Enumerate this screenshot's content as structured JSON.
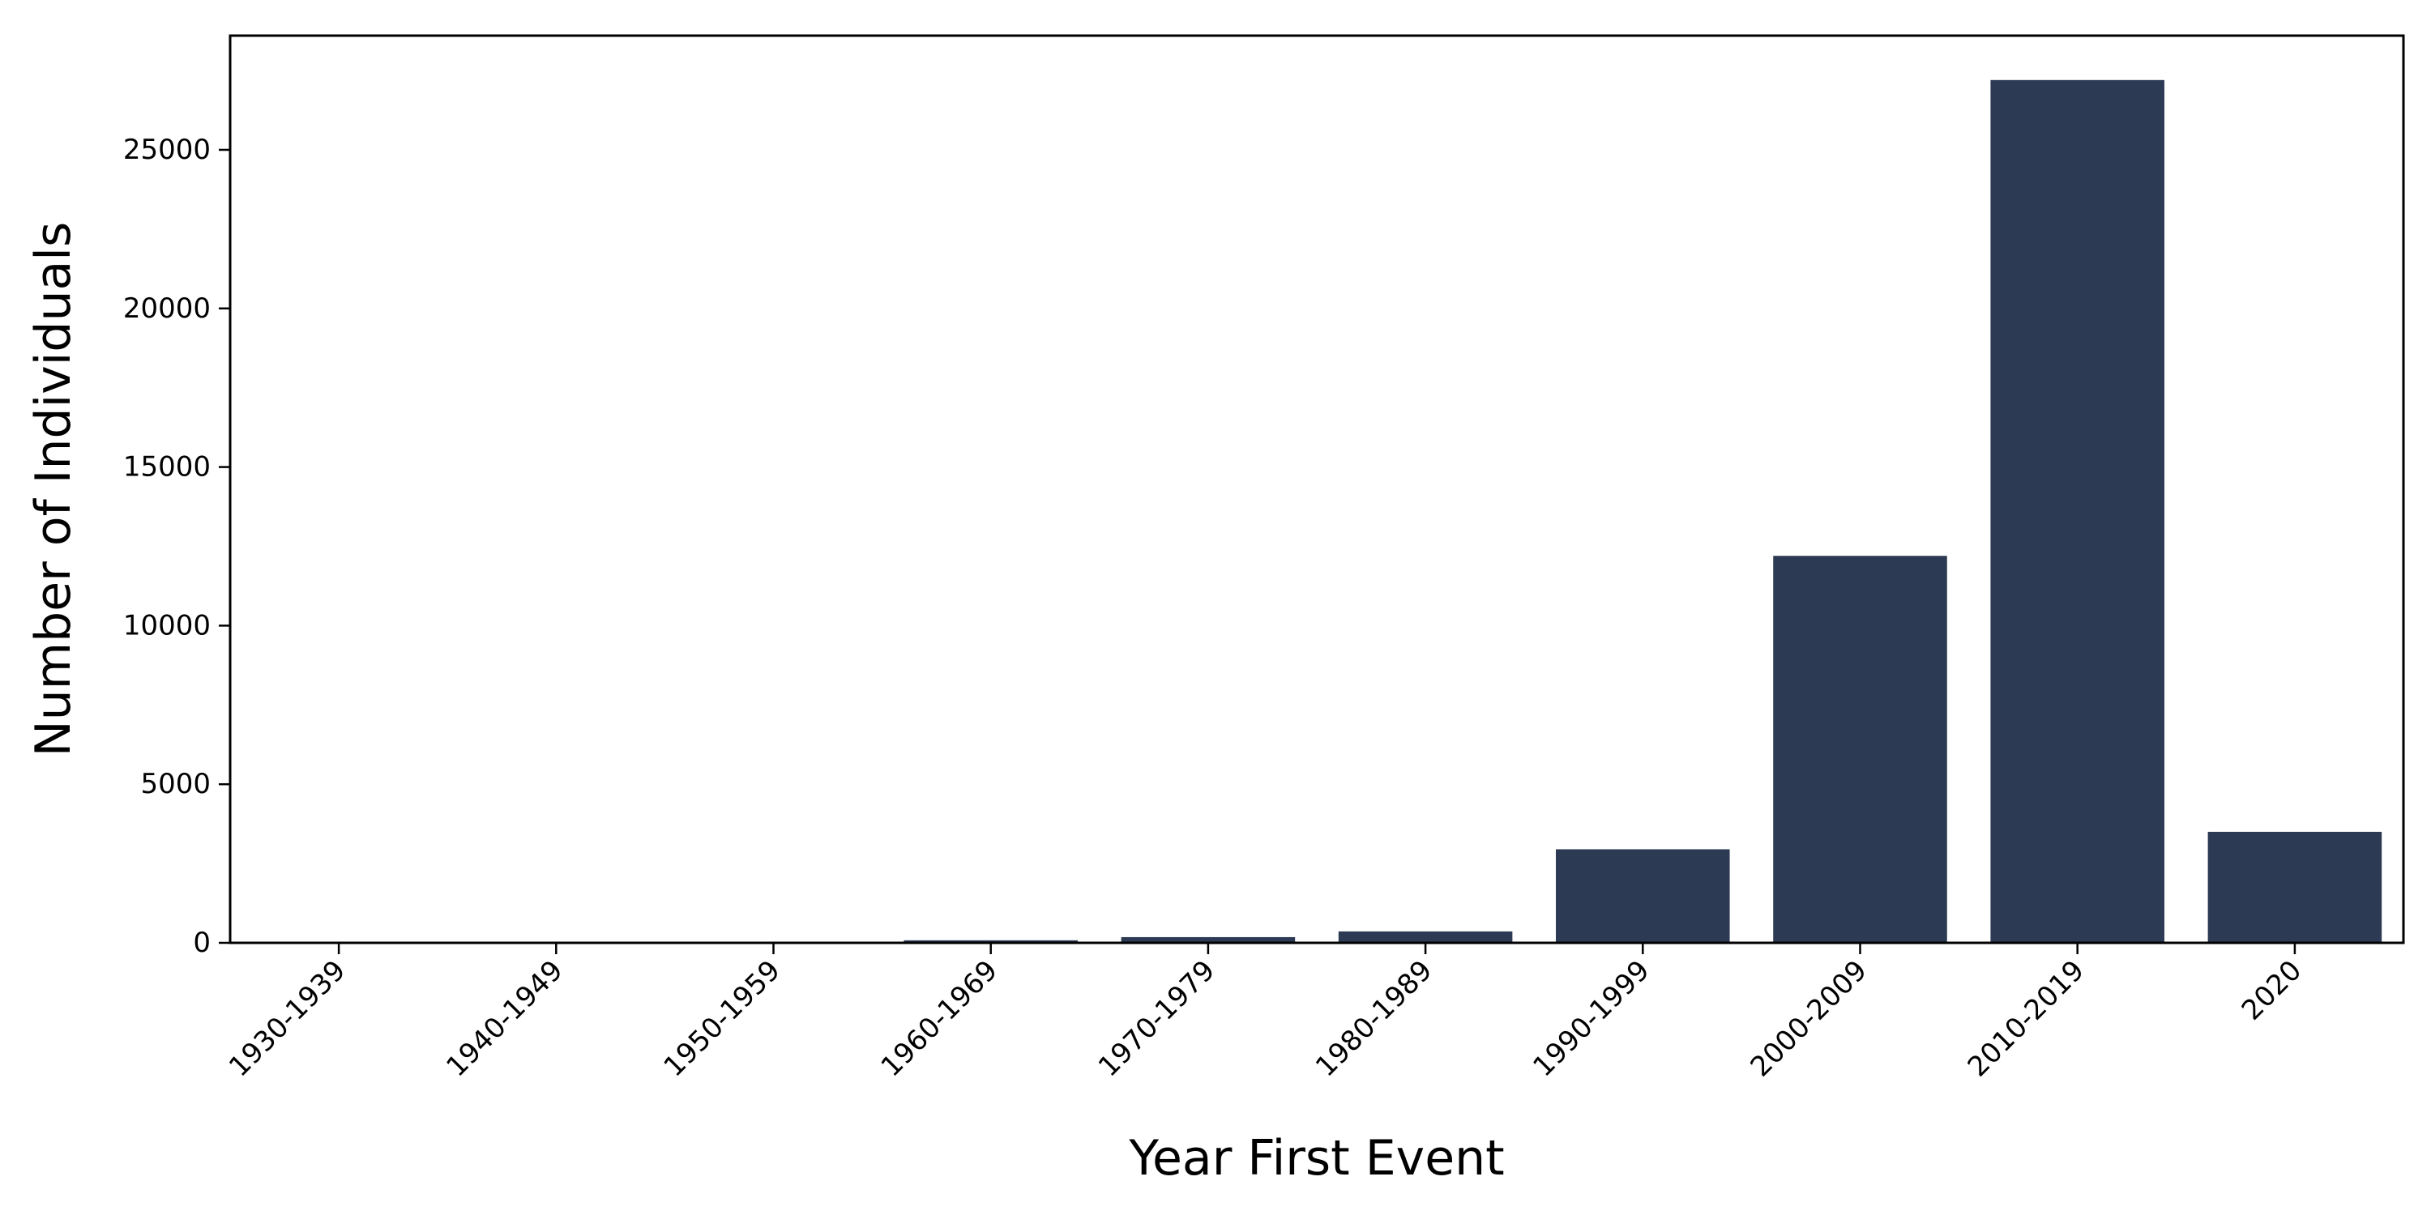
{
  "chart_data": {
    "type": "bar",
    "title": "",
    "xlabel": "Year First Event",
    "ylabel": "Number of Individuals",
    "categories": [
      "1930-1939",
      "1940-1949",
      "1950-1959",
      "1960-1969",
      "1970-1979",
      "1980-1989",
      "1990-1999",
      "2000-2009",
      "2010-2019",
      "2020"
    ],
    "values": [
      2,
      5,
      15,
      80,
      180,
      360,
      2950,
      12200,
      27200,
      3500
    ],
    "ylim": [
      0,
      28600
    ],
    "yticks": [
      0,
      5000,
      10000,
      15000,
      20000,
      25000
    ],
    "ytick_labels": [
      "0",
      "5000",
      "10000",
      "15000",
      "20000",
      "25000"
    ],
    "bar_color": "#2d3a53",
    "grid": false,
    "legend": "none"
  }
}
